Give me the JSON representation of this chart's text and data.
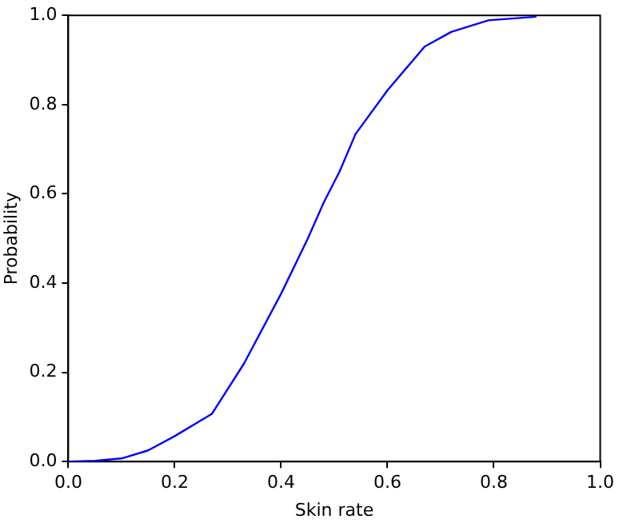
{
  "chart_data": {
    "type": "line",
    "xlabel": "Skin rate",
    "ylabel": "Probability",
    "x": [
      0,
      0.05,
      0.1,
      0.15,
      0.2,
      0.27,
      0.33,
      0.4,
      0.45,
      0.48,
      0.51,
      0.54,
      0.6,
      0.67,
      0.72,
      0.79,
      0.88
    ],
    "series": [
      {
        "color": "#0000ff",
        "values": [
          0,
          0.002,
          0.007,
          0.025,
          0.057,
          0.107,
          0.219,
          0.376,
          0.499,
          0.58,
          0.65,
          0.734,
          0.832,
          0.93,
          0.963,
          0.989,
          0.997
        ]
      }
    ],
    "xlim": [
      0,
      1
    ],
    "ylim": [
      0,
      1
    ],
    "xticks": [
      {
        "value": 0,
        "label": "0.0"
      },
      {
        "value": 0.2,
        "label": "0.2"
      },
      {
        "value": 0.4,
        "label": "0.4"
      },
      {
        "value": 0.6,
        "label": "0.6"
      },
      {
        "value": 0.8,
        "label": "0.8"
      },
      {
        "value": 1,
        "label": "1.0"
      }
    ],
    "yticks": [
      {
        "value": 0,
        "label": "0.0"
      },
      {
        "value": 0.2,
        "label": "0.2"
      },
      {
        "value": 0.4,
        "label": "0.4"
      },
      {
        "value": 0.6,
        "label": "0.6"
      },
      {
        "value": 0.8,
        "label": "0.8"
      },
      {
        "value": 1,
        "label": "1.0"
      }
    ],
    "grid": false,
    "legend": false,
    "marker": "none",
    "line_style": "solid"
  }
}
